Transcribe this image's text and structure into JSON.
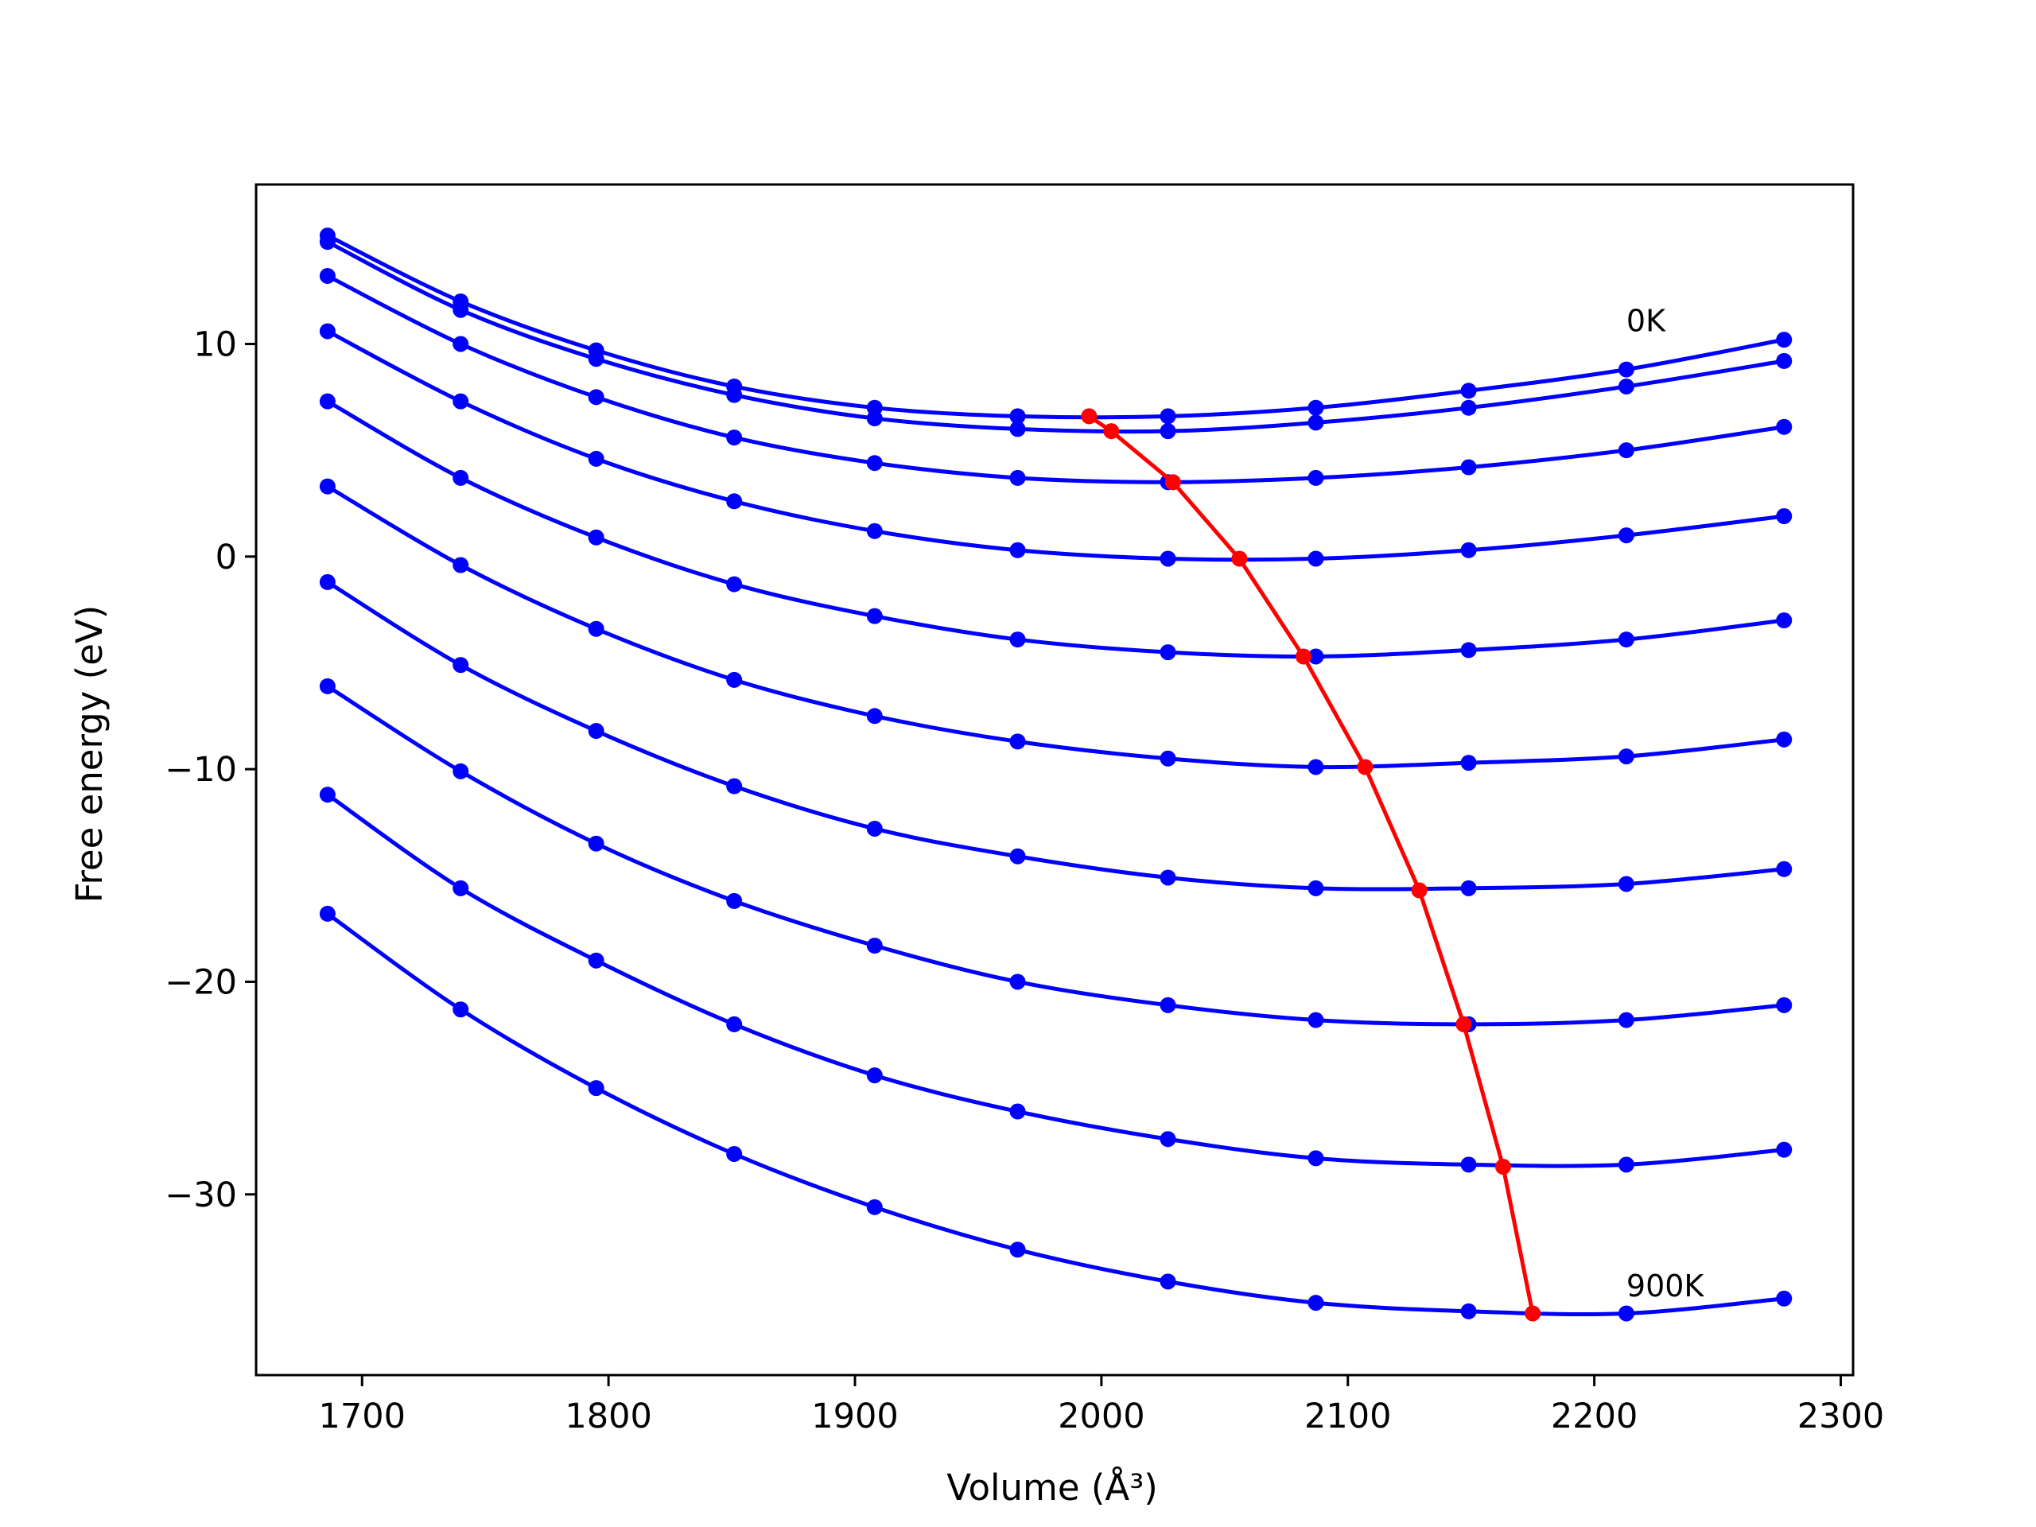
{
  "chart_data": {
    "type": "line",
    "title": "",
    "xlabel": "Volume (Å³)",
    "ylabel": "Free energy (eV)",
    "xlim": [
      1657,
      2305
    ],
    "ylim": [
      -38.5,
      17.5
    ],
    "x_ticks": [
      1700,
      1800,
      1900,
      2000,
      2100,
      2200,
      2300
    ],
    "y_ticks": [
      10,
      0,
      -10,
      -20,
      -30
    ],
    "x_tick_labels": [
      "1700",
      "1800",
      "1900",
      "2000",
      "2100",
      "2200",
      "2300"
    ],
    "y_tick_labels": [
      "10",
      "0",
      "−10",
      "−20",
      "−30"
    ],
    "grid": false,
    "legend": "none",
    "annotations": [
      {
        "text": "0K",
        "x": 2213,
        "y": 10.6
      },
      {
        "text": "900K",
        "x": 2213,
        "y": -34.8
      }
    ],
    "volumes": [
      1686,
      1740,
      1795,
      1851,
      1908,
      1966,
      2027,
      2087,
      2149,
      2213,
      2277
    ],
    "series": [
      {
        "color": "#0000ff",
        "values": [
          15.1,
          12.0,
          9.7,
          8.0,
          7.0,
          6.6,
          6.6,
          7.0,
          7.8,
          8.8,
          10.2
        ]
      },
      {
        "color": "#0000ff",
        "values": [
          14.8,
          11.6,
          9.3,
          7.6,
          6.5,
          6.0,
          5.9,
          6.3,
          7.0,
          8.0,
          9.2
        ]
      },
      {
        "color": "#0000ff",
        "values": [
          13.2,
          10.0,
          7.5,
          5.6,
          4.4,
          3.7,
          3.5,
          3.7,
          4.2,
          5.0,
          6.1
        ]
      },
      {
        "color": "#0000ff",
        "values": [
          10.6,
          7.3,
          4.6,
          2.6,
          1.2,
          0.3,
          -0.1,
          -0.1,
          0.3,
          1.0,
          1.9
        ]
      },
      {
        "color": "#0000ff",
        "values": [
          7.3,
          3.7,
          0.9,
          -1.3,
          -2.8,
          -3.9,
          -4.5,
          -4.7,
          -4.4,
          -3.9,
          -3.0
        ]
      },
      {
        "color": "#0000ff",
        "values": [
          3.3,
          -0.4,
          -3.4,
          -5.8,
          -7.5,
          -8.7,
          -9.5,
          -9.9,
          -9.7,
          -9.4,
          -8.6
        ]
      },
      {
        "color": "#0000ff",
        "values": [
          -1.2,
          -5.1,
          -8.2,
          -10.8,
          -12.8,
          -14.1,
          -15.1,
          -15.6,
          -15.6,
          -15.4,
          -14.7
        ]
      },
      {
        "color": "#0000ff",
        "values": [
          -6.1,
          -10.1,
          -13.5,
          -16.2,
          -18.3,
          -20.0,
          -21.1,
          -21.8,
          -22.0,
          -21.8,
          -21.1
        ]
      },
      {
        "color": "#0000ff",
        "values": [
          -11.2,
          -15.6,
          -19.0,
          -22.0,
          -24.4,
          -26.1,
          -27.4,
          -28.3,
          -28.6,
          -28.6,
          -27.9
        ]
      },
      {
        "color": "#0000ff",
        "values": [
          -16.8,
          -21.3,
          -25.0,
          -28.1,
          -30.6,
          -32.6,
          -34.1,
          -35.1,
          -35.5,
          -35.6,
          -34.9
        ]
      }
    ],
    "minima_line": {
      "color": "#ff0000",
      "points": [
        {
          "x": 1995,
          "y": 6.6
        },
        {
          "x": 2004,
          "y": 5.9
        },
        {
          "x": 2029,
          "y": 3.5
        },
        {
          "x": 2056,
          "y": -0.1
        },
        {
          "x": 2082,
          "y": -4.7
        },
        {
          "x": 2107,
          "y": -9.9
        },
        {
          "x": 2129,
          "y": -15.7
        },
        {
          "x": 2147,
          "y": -22.0
        },
        {
          "x": 2163,
          "y": -28.7
        },
        {
          "x": 2175,
          "y": -35.6
        }
      ]
    },
    "curve_color": "#0000ff",
    "minima_color": "#ff0000"
  }
}
